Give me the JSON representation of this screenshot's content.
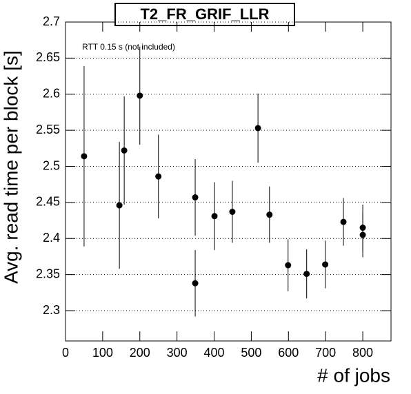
{
  "chart_data": {
    "type": "errorbar",
    "title": "T2_FR_GRIF_LLR",
    "x_label": "# of jobs",
    "y_label": "Avg. read time per block [s]",
    "annotation": "RTT 0.15 s (not included)",
    "series": [
      {
        "color": "#000000",
        "x": [
          50,
          145,
          158,
          200,
          250,
          349,
          349,
          401,
          449,
          518,
          549,
          599,
          649,
          699,
          748,
          800,
          800
        ],
        "values": [
          2.514,
          2.446,
          2.522,
          2.598,
          2.486,
          2.457,
          2.338,
          2.431,
          2.437,
          2.553,
          2.433,
          2.363,
          2.351,
          2.364,
          2.423,
          2.415,
          2.405
        ],
        "errors": [
          0.125,
          0.088,
          0.075,
          0.068,
          0.058,
          0.053,
          0.046,
          0.047,
          0.043,
          0.048,
          0.039,
          0.036,
          0.034,
          0.033,
          0.033,
          0.032,
          0.031
        ]
      }
    ],
    "xlim": [
      0,
      876
    ],
    "xticks": [
      0,
      100,
      200,
      300,
      400,
      500,
      600,
      700,
      800
    ],
    "ylim": [
      2.258,
      2.7
    ],
    "yticks": [
      2.3,
      2.35,
      2.4,
      2.45,
      2.5,
      2.55,
      2.6,
      2.65,
      2.7
    ],
    "grid": "y"
  }
}
